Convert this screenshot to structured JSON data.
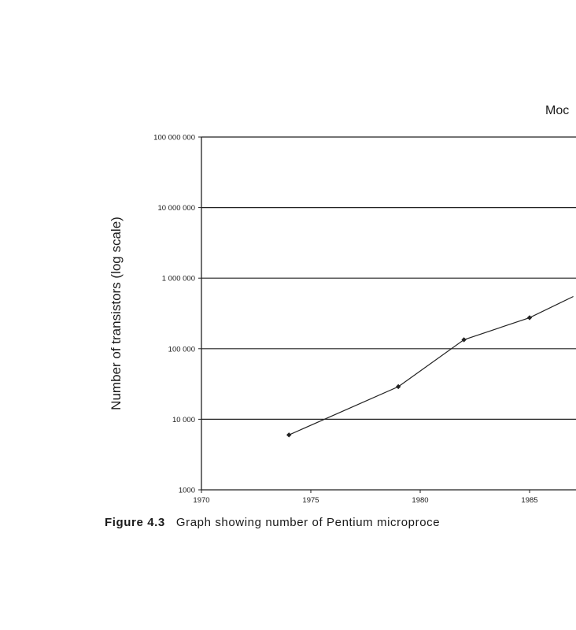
{
  "chart_data": {
    "type": "line",
    "title": "Moc",
    "ylabel": "Number of transistors (log scale)",
    "xlabel": "",
    "y_scale": "log",
    "ylim": [
      1000,
      100000000
    ],
    "xlim": [
      1970,
      1987
    ],
    "x_ticks": [
      1970,
      1975,
      1980,
      1985
    ],
    "y_ticks": [
      "1000",
      "10 000",
      "100 000",
      "1 000 000",
      "10 000 000",
      "100 000 000"
    ],
    "grid": "horizontal",
    "series": [
      {
        "x": [
          1974,
          1979,
          1982,
          1985,
          1987
        ],
        "y": [
          6000,
          29000,
          134000,
          275000,
          550000
        ]
      }
    ]
  },
  "caption": {
    "label": "Figure 4.3",
    "text": "Graph showing number of Pentium microproce"
  }
}
